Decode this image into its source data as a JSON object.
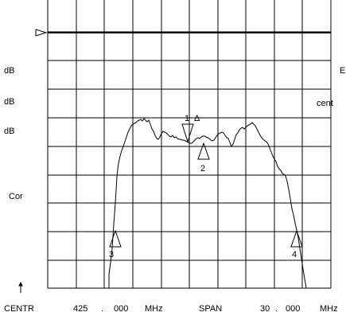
{
  "left_labels": [
    "dB",
    "dB",
    "dB",
    "Cor"
  ],
  "right_labels": [
    "E",
    "cent"
  ],
  "reference_arrow_icon": "up-arrow-icon",
  "reference_level_icon": "triangle-right-icon",
  "markers": [
    {
      "number": "1",
      "delta_symbol": "Δ"
    },
    {
      "number": "2"
    },
    {
      "number": "3"
    },
    {
      "number": "4"
    }
  ],
  "footer": {
    "centr_label": "CENTR",
    "centr_value_int": "425",
    "centr_dot": ".",
    "centr_value_dec": "000",
    "centr_unit": "MHz",
    "span_label": "SPAN",
    "span_value_int": "30",
    "span_dot": ".",
    "span_value_dec": "000",
    "span_unit": "MHz"
  },
  "colors": {
    "background": "#ffffff",
    "lines": "#000000"
  }
}
